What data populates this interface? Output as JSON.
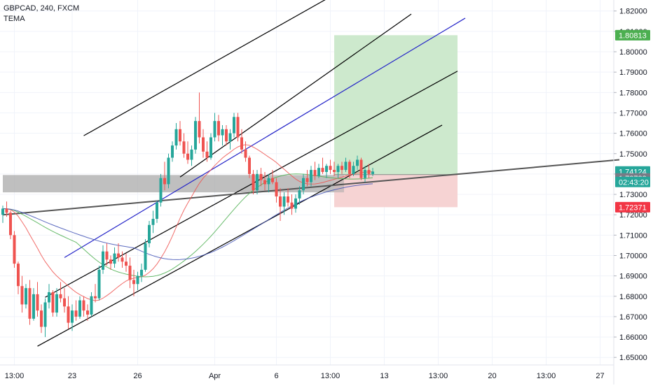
{
  "legend": {
    "symbol_line": "GBPCAD, 240, FXCM",
    "indicator": "TEMA"
  },
  "colors": {
    "up": "#26a69a",
    "down": "#ef5350",
    "grid": "#f0f3fa",
    "axis_text": "#131722",
    "channel": "#000000",
    "mid_line": "#2323c8",
    "trend": "#555555",
    "tema_red": "#ef5350",
    "tema_blue": "#3f51b5",
    "tema_green": "#4caf50",
    "profit_zone": "#cde9cd",
    "loss_zone": "#f6d3d3",
    "zone_band": "#a9a9a9"
  },
  "chart_data": {
    "type": "candlestick",
    "title": "GBPCAD, 240, FXCM",
    "indicator": "TEMA",
    "yticks": [
      "1.82000",
      "1.81000",
      "1.80000",
      "1.79000",
      "1.78000",
      "1.77000",
      "1.76000",
      "1.75000",
      "1.74000",
      "1.73000",
      "1.72000",
      "1.71000",
      "1.70000",
      "1.69000",
      "1.68000",
      "1.67000",
      "1.66000",
      "1.65000"
    ],
    "ylim": [
      1.6463,
      1.8254
    ],
    "xticks": [
      {
        "label": "13:00",
        "bar": 3
      },
      {
        "label": "23",
        "bar": 18
      },
      {
        "label": "26",
        "bar": 35
      },
      {
        "label": "Apr",
        "bar": 55
      },
      {
        "label": "6",
        "bar": 71
      },
      {
        "label": "13:00",
        "bar": 85
      },
      {
        "label": "13",
        "bar": 99
      },
      {
        "label": "13:00",
        "bar": 113
      },
      {
        "label": "20",
        "bar": 127
      },
      {
        "label": "13:00",
        "bar": 141
      },
      {
        "label": "27",
        "bar": 155
      }
    ],
    "bar_count": 174,
    "price_labels": [
      {
        "value": 1.80813,
        "text": "1.80813",
        "color": "#4caf50"
      },
      {
        "value": 1.74124,
        "text": "1.74124",
        "color": "#26a69a"
      },
      {
        "value": 1.73783,
        "text": "1.73783",
        "color": "#787b86"
      },
      {
        "value": 1.72371,
        "text": "1.72371",
        "color": "#f23645"
      }
    ],
    "countdown": {
      "text": "02:43:20",
      "value": 1.7374
    },
    "candles": [
      [
        1.72,
        1.7245,
        1.716,
        1.723
      ],
      [
        1.723,
        1.7265,
        1.719,
        1.721
      ],
      [
        1.721,
        1.722,
        1.708,
        1.71
      ],
      [
        1.71,
        1.712,
        1.694,
        1.696
      ],
      [
        1.696,
        1.697,
        1.681,
        1.685
      ],
      [
        1.685,
        1.69,
        1.672,
        1.676
      ],
      [
        1.676,
        1.686,
        1.674,
        1.684
      ],
      [
        1.684,
        1.688,
        1.666,
        1.669
      ],
      [
        1.669,
        1.684,
        1.668,
        1.681
      ],
      [
        1.681,
        1.687,
        1.67,
        1.673
      ],
      [
        1.673,
        1.676,
        1.662,
        1.665
      ],
      [
        1.665,
        1.679,
        1.66,
        1.677
      ],
      [
        1.677,
        1.686,
        1.674,
        1.682
      ],
      [
        1.682,
        1.683,
        1.67,
        1.672
      ],
      [
        1.672,
        1.684,
        1.67,
        1.681
      ],
      [
        1.681,
        1.687,
        1.677,
        1.679
      ],
      [
        1.679,
        1.684,
        1.672,
        1.675
      ],
      [
        1.675,
        1.68,
        1.664,
        1.667
      ],
      [
        1.667,
        1.676,
        1.663,
        1.673
      ],
      [
        1.673,
        1.678,
        1.668,
        1.67
      ],
      [
        1.67,
        1.68,
        1.669,
        1.678
      ],
      [
        1.678,
        1.68,
        1.67,
        1.673
      ],
      [
        1.673,
        1.676,
        1.668,
        1.671
      ],
      [
        1.671,
        1.682,
        1.67,
        1.68
      ],
      [
        1.68,
        1.686,
        1.677,
        1.679
      ],
      [
        1.679,
        1.695,
        1.678,
        1.693
      ],
      [
        1.693,
        1.705,
        1.691,
        1.702
      ],
      [
        1.702,
        1.706,
        1.695,
        1.698
      ],
      [
        1.698,
        1.7,
        1.693,
        1.696
      ],
      [
        1.696,
        1.704,
        1.694,
        1.701
      ],
      [
        1.701,
        1.706,
        1.697,
        1.699
      ],
      [
        1.699,
        1.702,
        1.694,
        1.697
      ],
      [
        1.697,
        1.701,
        1.692,
        1.695
      ],
      [
        1.695,
        1.699,
        1.684,
        1.688
      ],
      [
        1.688,
        1.693,
        1.68,
        1.686
      ],
      [
        1.686,
        1.692,
        1.683,
        1.69
      ],
      [
        1.69,
        1.696,
        1.687,
        1.693
      ],
      [
        1.693,
        1.708,
        1.692,
        1.706
      ],
      [
        1.706,
        1.717,
        1.704,
        1.715
      ],
      [
        1.715,
        1.722,
        1.711,
        1.718
      ],
      [
        1.718,
        1.727,
        1.716,
        1.726
      ],
      [
        1.726,
        1.74,
        1.724,
        1.738
      ],
      [
        1.738,
        1.746,
        1.732,
        1.735
      ],
      [
        1.735,
        1.75,
        1.733,
        1.748
      ],
      [
        1.748,
        1.756,
        1.746,
        1.754
      ],
      [
        1.754,
        1.765,
        1.752,
        1.762
      ],
      [
        1.762,
        1.766,
        1.754,
        1.756
      ],
      [
        1.756,
        1.76,
        1.748,
        1.75
      ],
      [
        1.75,
        1.756,
        1.745,
        1.747
      ],
      [
        1.747,
        1.754,
        1.744,
        1.752
      ],
      [
        1.752,
        1.768,
        1.75,
        1.766
      ],
      [
        1.766,
        1.78,
        1.755,
        1.758
      ],
      [
        1.758,
        1.762,
        1.748,
        1.751
      ],
      [
        1.751,
        1.756,
        1.746,
        1.748
      ],
      [
        1.748,
        1.76,
        1.747,
        1.758
      ],
      [
        1.758,
        1.77,
        1.756,
        1.766
      ],
      [
        1.766,
        1.769,
        1.756,
        1.759
      ],
      [
        1.759,
        1.764,
        1.754,
        1.762
      ],
      [
        1.762,
        1.764,
        1.754,
        1.756
      ],
      [
        1.756,
        1.762,
        1.752,
        1.76
      ],
      [
        1.76,
        1.77,
        1.758,
        1.768
      ],
      [
        1.768,
        1.77,
        1.756,
        1.758
      ],
      [
        1.758,
        1.762,
        1.75,
        1.752
      ],
      [
        1.752,
        1.756,
        1.746,
        1.748
      ],
      [
        1.748,
        1.749,
        1.738,
        1.74
      ],
      [
        1.74,
        1.742,
        1.73,
        1.732
      ],
      [
        1.732,
        1.742,
        1.73,
        1.74
      ],
      [
        1.74,
        1.743,
        1.734,
        1.737
      ],
      [
        1.737,
        1.741,
        1.732,
        1.735
      ],
      [
        1.735,
        1.74,
        1.731,
        1.738
      ],
      [
        1.738,
        1.742,
        1.735,
        1.736
      ],
      [
        1.736,
        1.738,
        1.726,
        1.729
      ],
      [
        1.729,
        1.733,
        1.717,
        1.724
      ],
      [
        1.724,
        1.731,
        1.72,
        1.729
      ],
      [
        1.729,
        1.733,
        1.724,
        1.726
      ],
      [
        1.726,
        1.73,
        1.72,
        1.723
      ],
      [
        1.723,
        1.73,
        1.721,
        1.728
      ],
      [
        1.728,
        1.734,
        1.725,
        1.732
      ],
      [
        1.732,
        1.74,
        1.73,
        1.738
      ],
      [
        1.738,
        1.742,
        1.734,
        1.736
      ],
      [
        1.736,
        1.744,
        1.734,
        1.742
      ],
      [
        1.742,
        1.746,
        1.737,
        1.739
      ],
      [
        1.739,
        1.745,
        1.738,
        1.743
      ],
      [
        1.743,
        1.748,
        1.74,
        1.741
      ],
      [
        1.741,
        1.745,
        1.738,
        1.744
      ],
      [
        1.744,
        1.747,
        1.74,
        1.742
      ],
      [
        1.742,
        1.746,
        1.739,
        1.741
      ],
      [
        1.741,
        1.745,
        1.738,
        1.744
      ],
      [
        1.744,
        1.746,
        1.74,
        1.742
      ],
      [
        1.742,
        1.748,
        1.741,
        1.746
      ],
      [
        1.746,
        1.747,
        1.738,
        1.74
      ],
      [
        1.74,
        1.746,
        1.739,
        1.744
      ],
      [
        1.744,
        1.749,
        1.742,
        1.747
      ],
      [
        1.747,
        1.748,
        1.737,
        1.738
      ],
      [
        1.738,
        1.744,
        1.736,
        1.742
      ],
      [
        1.742,
        1.745,
        1.738,
        1.74
      ],
      [
        1.74,
        1.743,
        1.739,
        1.7412
      ]
    ]
  },
  "drawings": {
    "channel_top": {
      "from": [
        21,
        1.7588
      ],
      "to": [
        101,
        1.844
      ]
    },
    "channel_mid": {
      "from": [
        46,
        1.7385
      ],
      "to": [
        106,
        1.8185
      ]
    },
    "blue_line": {
      "from": [
        16,
        1.699
      ],
      "to": [
        120,
        1.8165
      ]
    },
    "channel_lower": {
      "from": [
        11,
        1.6795
      ],
      "to": [
        118,
        1.7905
      ]
    },
    "channel_bottom": {
      "from": [
        9,
        1.6555
      ],
      "to": [
        114,
        1.764
      ]
    },
    "trend_line": {
      "from": [
        0,
        1.72
      ],
      "to": [
        160,
        1.747
      ]
    },
    "zone_band": {
      "from_bar": 0,
      "to_bar": 86,
      "top": 1.7395,
      "bottom": 1.731
    },
    "entry_box": {
      "from_bar": 86,
      "to_bar": 88,
      "top": 1.7395,
      "bottom": 1.731
    },
    "position": {
      "from_bar": 86,
      "to_bar": 118,
      "entry": 1.7397,
      "target": 1.80813,
      "stop": 1.72371
    }
  }
}
